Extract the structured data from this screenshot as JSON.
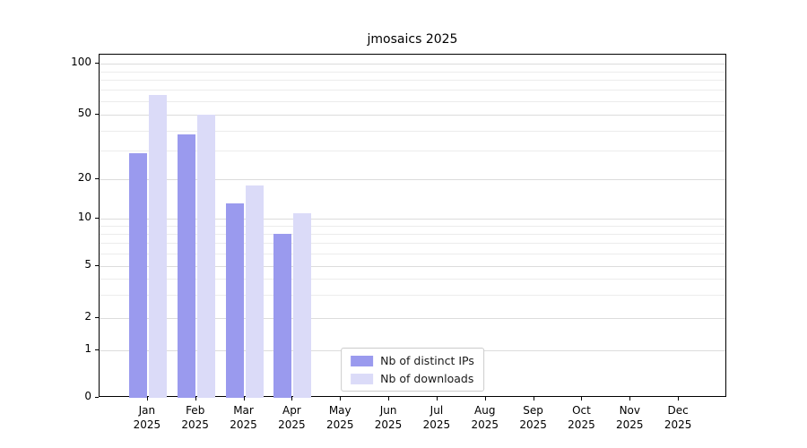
{
  "chart_data": {
    "type": "bar",
    "title": "jmosaics 2025",
    "yscale": "symlog",
    "grid": true,
    "categories": [
      "Jan",
      "Feb",
      "Mar",
      "Apr",
      "May",
      "Jun",
      "Jul",
      "Aug",
      "Sep",
      "Oct",
      "Nov",
      "Dec"
    ],
    "category_year": "2025",
    "series": [
      {
        "name": "Nb of distinct IPs",
        "color": "#9a9aee",
        "values": [
          29,
          38,
          13,
          8,
          0,
          0,
          0,
          0,
          0,
          0,
          0,
          0
        ]
      },
      {
        "name": "Nb of downloads",
        "color": "#dbdbf8",
        "values": [
          65,
          50,
          18,
          11,
          0,
          0,
          0,
          0,
          0,
          0,
          0,
          0
        ]
      }
    ],
    "yticks": [
      100,
      50,
      20,
      10,
      5,
      2,
      1,
      0
    ],
    "minor_yticks": [
      3,
      4,
      6,
      7,
      8,
      9,
      30,
      40,
      60,
      70,
      80,
      90
    ],
    "ylim": [
      0,
      100
    ],
    "xlabel": "",
    "ylabel": "",
    "legend_position": "lower center"
  }
}
